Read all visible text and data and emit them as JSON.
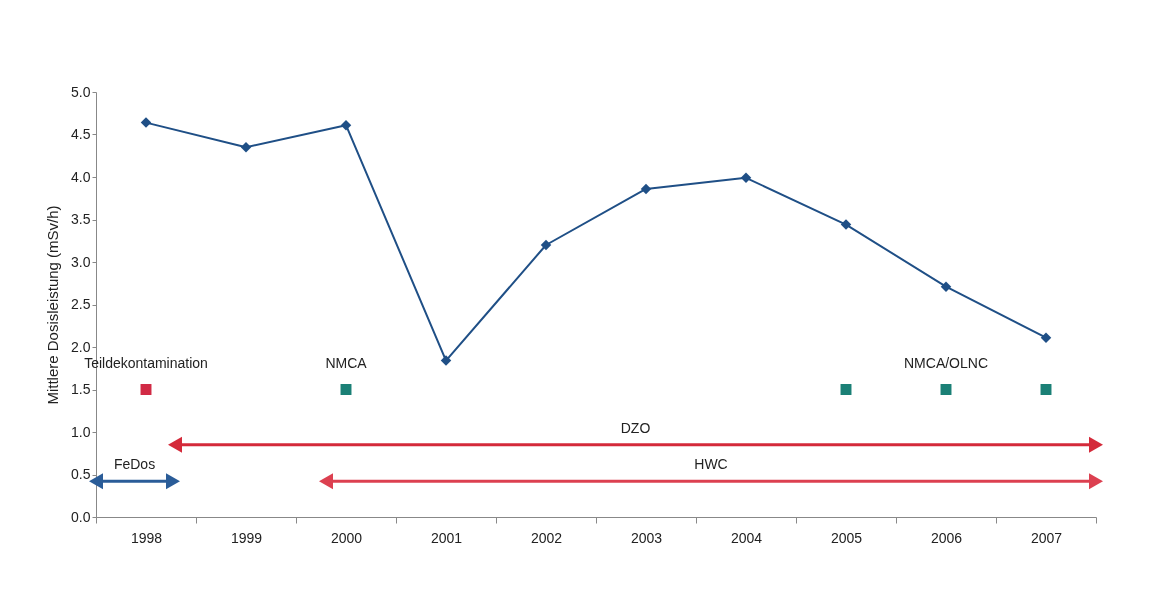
{
  "chart_data": {
    "type": "line",
    "ylabel": "Mittlere Dosisleistung (mSv/h)",
    "xlim": [
      1997.5,
      2007.5
    ],
    "xticks": [
      1998,
      1999,
      2000,
      2001,
      2002,
      2003,
      2004,
      2005,
      2006,
      2007,
      {
        "value": 1997.5,
        "label": null
      },
      {
        "value": 1998.5,
        "label": null
      },
      {
        "value": 1999.5,
        "label": null
      },
      {
        "value": 2000.5,
        "label": null
      },
      {
        "value": 2001.5,
        "label": null
      },
      {
        "value": 2002.5,
        "label": null
      },
      {
        "value": 2003.5,
        "label": null
      },
      {
        "value": 2004.5,
        "label": null
      },
      {
        "value": 2005.5,
        "label": null
      },
      {
        "value": 2006.5,
        "label": null
      },
      {
        "value": 2007.5,
        "label": null
      }
    ],
    "ylim": [
      0,
      5
    ],
    "yticks": [
      {
        "value": 0,
        "label": "0.0"
      },
      0.5,
      {
        "value": 1,
        "label": "1.0"
      },
      1.5,
      {
        "value": 2,
        "label": "2.0"
      },
      2.5,
      {
        "value": 3,
        "label": "3.0"
      },
      3.5,
      {
        "value": 4,
        "label": "4.0"
      },
      4.5,
      {
        "value": 5,
        "label": "5.0"
      }
    ],
    "grid": false,
    "marker": "diamond",
    "line_style": "solid",
    "series": [
      {
        "color": "#1f4f86",
        "x": [
          1998,
          1999,
          2000,
          2001,
          2002,
          2003,
          2004,
          2005,
          2006,
          2007
        ],
        "values": [
          4.64,
          4.35,
          4.61,
          1.84,
          3.2,
          3.86,
          3.99,
          3.44,
          2.71,
          2.11
        ]
      },
      {
        "type": "scatter",
        "name": "Teildekontamination",
        "color": "#d12a45",
        "marker": "square",
        "x": [
          1998
        ],
        "values": [
          1.5
        ]
      },
      {
        "type": "scatter",
        "name": "NMCA",
        "color": "#1b8076",
        "marker": "square",
        "x": [
          2000
        ],
        "values": [
          1.5
        ]
      },
      {
        "type": "scatter",
        "name": "NMCA/OLNC",
        "color": "#1b8076",
        "marker": "square",
        "x": [
          2005,
          2006,
          2007
        ],
        "values": [
          1.5,
          1.5,
          1.5
        ]
      },
      {
        "type": "line",
        "name": "FeDos",
        "color": "#2a5c98",
        "marker": "triangle",
        "x": [
          1997.5,
          1998.27
        ],
        "values": [
          0.42,
          0.42
        ]
      },
      {
        "type": "line",
        "name": "DZO",
        "color": "#d42a3a",
        "marker": "triangle",
        "x": [
          1998.29,
          2007.5
        ],
        "values": [
          0.85,
          0.85
        ]
      },
      {
        "type": "line",
        "name": "HWC",
        "color": "#dc4050",
        "marker": "triangle",
        "x": [
          1999.8,
          2007.5
        ],
        "values": [
          0.42,
          0.42
        ]
      }
    ]
  }
}
